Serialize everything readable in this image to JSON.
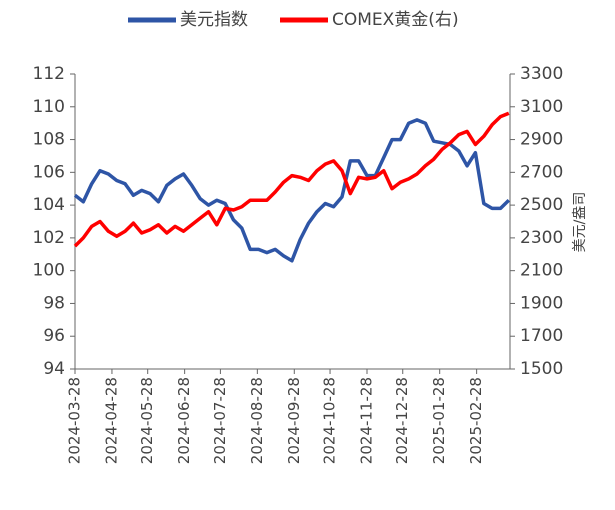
{
  "chart_data": {
    "type": "line",
    "x": [
      "2024-03-28",
      "2024-04-04",
      "2024-04-11",
      "2024-04-18",
      "2024-04-25",
      "2024-05-02",
      "2024-05-09",
      "2024-05-16",
      "2024-05-23",
      "2024-05-30",
      "2024-06-06",
      "2024-06-13",
      "2024-06-20",
      "2024-06-27",
      "2024-07-04",
      "2024-07-11",
      "2024-07-18",
      "2024-07-25",
      "2024-08-01",
      "2024-08-08",
      "2024-08-15",
      "2024-08-22",
      "2024-08-29",
      "2024-09-05",
      "2024-09-12",
      "2024-09-19",
      "2024-09-26",
      "2024-10-03",
      "2024-10-10",
      "2024-10-17",
      "2024-10-24",
      "2024-10-31",
      "2024-11-07",
      "2024-11-14",
      "2024-11-21",
      "2024-11-28",
      "2024-12-05",
      "2024-12-12",
      "2024-12-19",
      "2024-12-26",
      "2025-01-02",
      "2025-01-09",
      "2025-01-16",
      "2025-01-23",
      "2025-01-30",
      "2025-02-06",
      "2025-02-13",
      "2025-02-20",
      "2025-02-27",
      "2025-03-06",
      "2025-03-13",
      "2025-03-20",
      "2025-03-27"
    ],
    "series": [
      {
        "name": "美元指数",
        "color": "#2e55a6",
        "axis": "y",
        "values": [
          104.6,
          104.2,
          105.3,
          106.1,
          105.9,
          105.5,
          105.3,
          104.6,
          104.9,
          104.7,
          104.2,
          105.2,
          105.6,
          105.9,
          105.2,
          104.4,
          104.0,
          104.3,
          104.1,
          103.1,
          102.6,
          101.3,
          101.3,
          101.1,
          101.3,
          100.9,
          100.6,
          101.9,
          102.9,
          103.6,
          104.1,
          103.9,
          104.5,
          106.7,
          106.7,
          105.8,
          105.8,
          106.9,
          108.0,
          108.0,
          109.0,
          109.2,
          109.0,
          107.9,
          107.8,
          107.7,
          107.3,
          106.4,
          107.2,
          104.1,
          103.8,
          103.8,
          104.3
        ]
      },
      {
        "name": "COMEX黄金(右)",
        "color": "#ff0000",
        "axis": "y2",
        "values": [
          2250,
          2300,
          2370,
          2400,
          2340,
          2310,
          2340,
          2390,
          2330,
          2350,
          2380,
          2330,
          2370,
          2340,
          2380,
          2420,
          2460,
          2380,
          2480,
          2470,
          2490,
          2530,
          2530,
          2530,
          2580,
          2640,
          2680,
          2670,
          2650,
          2710,
          2750,
          2770,
          2710,
          2570,
          2670,
          2660,
          2670,
          2710,
          2600,
          2640,
          2660,
          2690,
          2740,
          2780,
          2840,
          2880,
          2930,
          2950,
          2870,
          2920,
          2990,
          3040,
          3060
        ]
      }
    ],
    "xlim": [
      "2024-03-28",
      "2025-03-28"
    ],
    "xticks": [
      "2024-03-28",
      "2024-04-28",
      "2024-05-28",
      "2024-06-28",
      "2024-07-28",
      "2024-08-28",
      "2024-09-28",
      "2024-10-28",
      "2024-11-28",
      "2024-12-28",
      "2025-01-28",
      "2025-02-28"
    ],
    "ylim": [
      94,
      112
    ],
    "yticks": [
      94,
      96,
      98,
      100,
      102,
      104,
      106,
      108,
      110,
      112
    ],
    "y2lim": [
      1500,
      3300
    ],
    "y2ticks": [
      1500,
      1700,
      1900,
      2100,
      2300,
      2500,
      2700,
      2900,
      3100,
      3300
    ],
    "y2label": "美元/盎司"
  }
}
